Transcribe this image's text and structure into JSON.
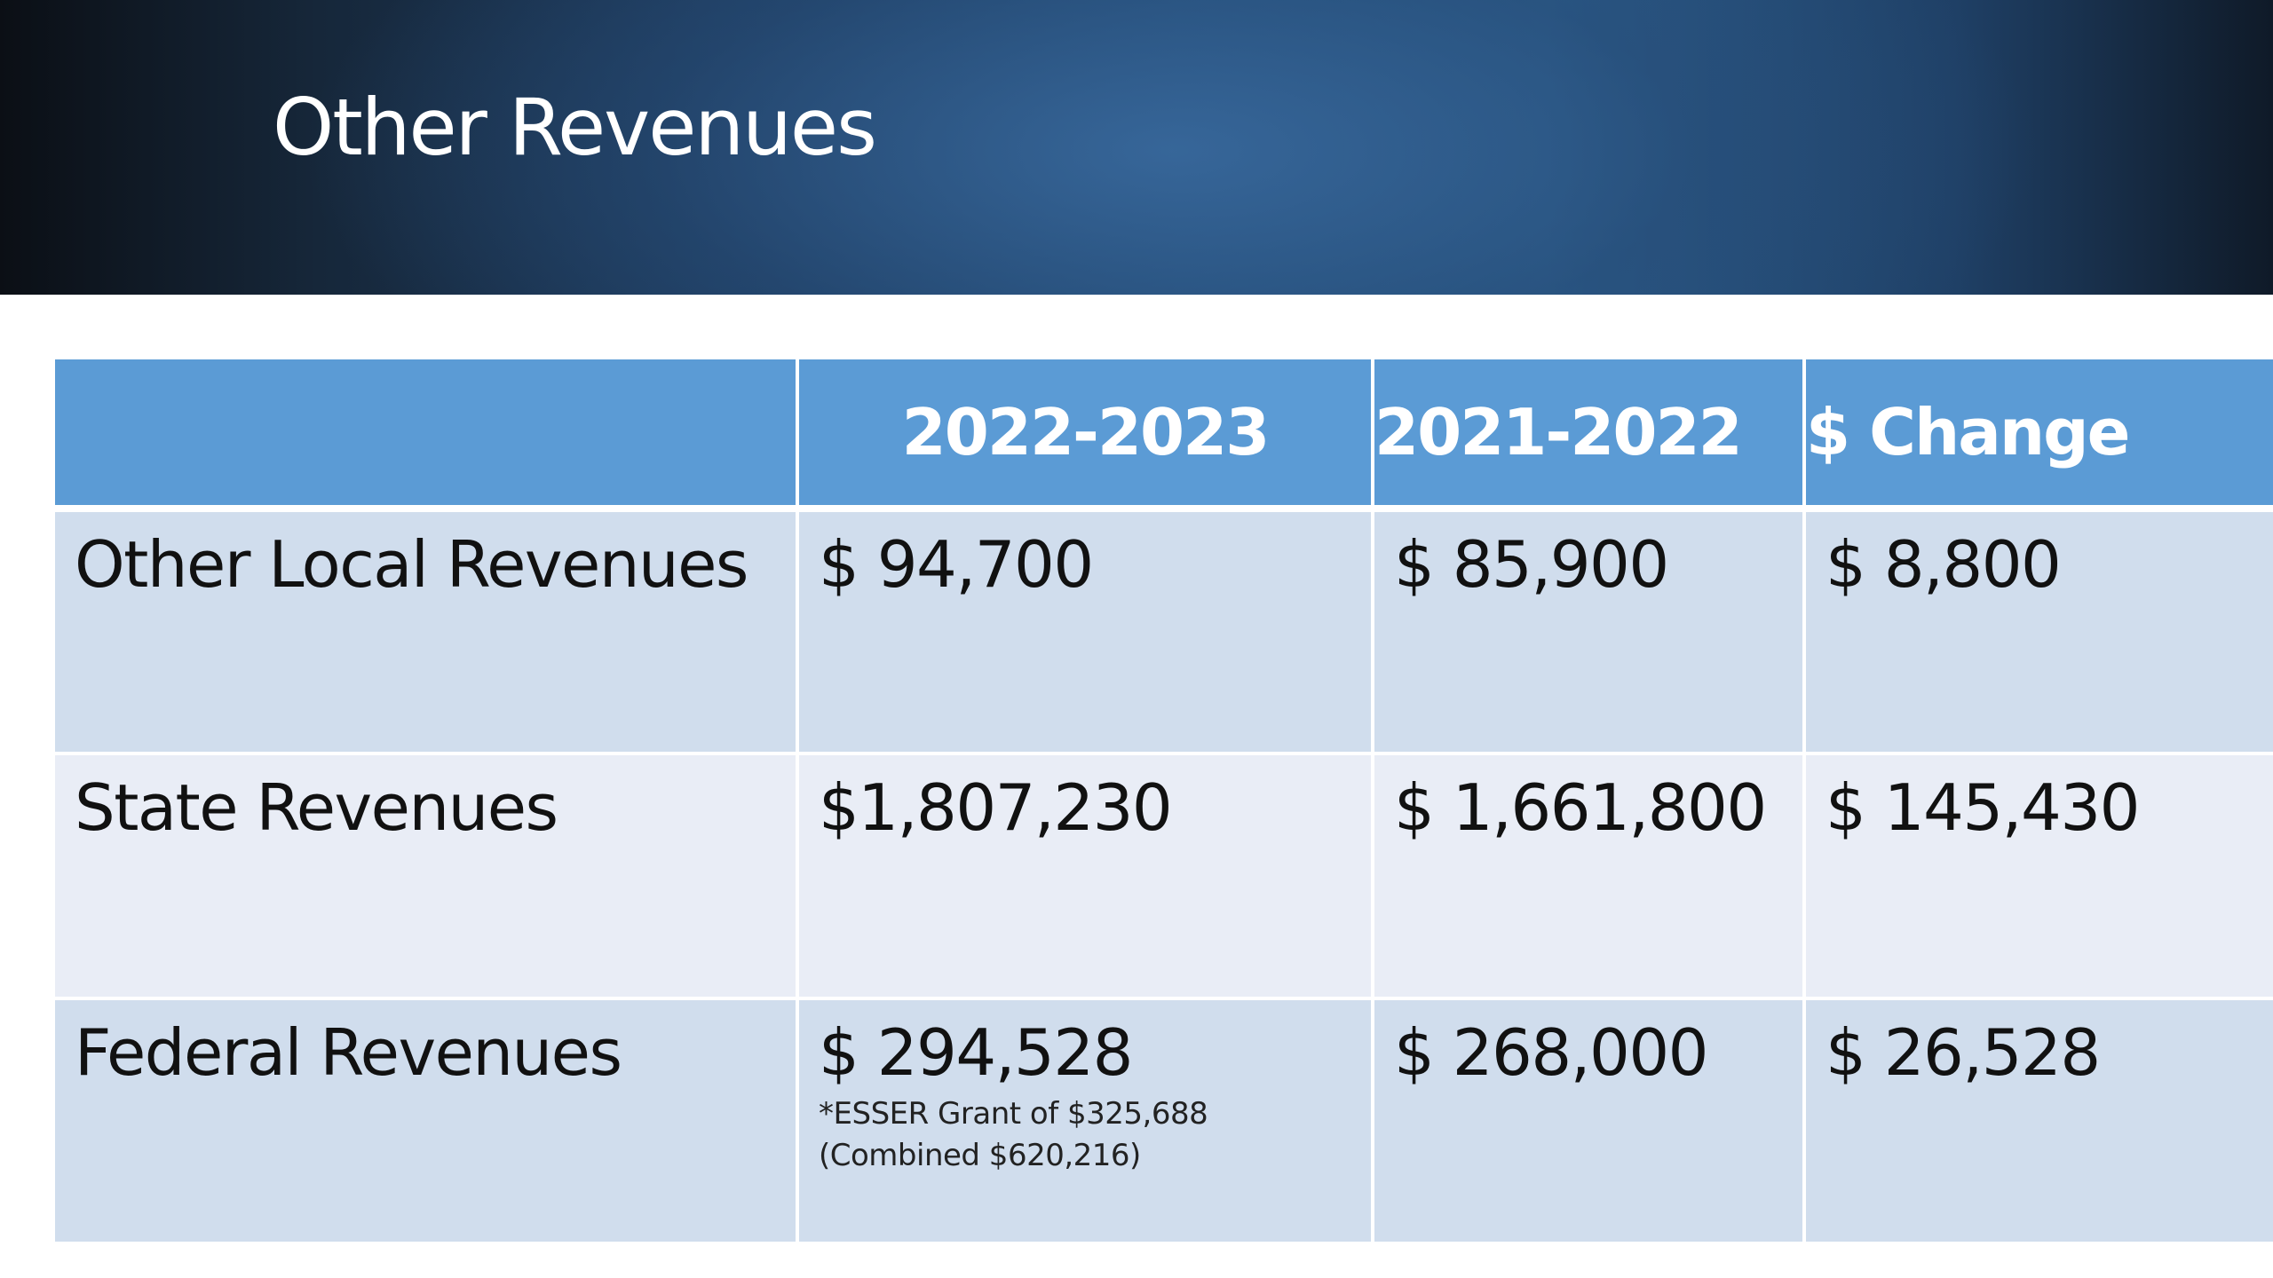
{
  "slide": {
    "title": "Other Revenues"
  },
  "table": {
    "headers": [
      "",
      "2022-2023",
      "2021-2022",
      "$ Change"
    ],
    "rows": [
      {
        "label": "Other Local Revenues",
        "y2022_2023": "$ 94,700",
        "y2021_2022": "$ 85,900",
        "change": "$ 8,800"
      },
      {
        "label": "State Revenues",
        "y2022_2023": "$1,807,230",
        "y2021_2022": "$ 1,661,800",
        "change": "$ 145,430"
      },
      {
        "label": "Federal Revenues",
        "y2022_2023": "$ 294,528",
        "note_line1": "*ESSER Grant of $325,688",
        "note_line2": "(Combined $620,216)",
        "y2021_2022": "$ 268,000",
        "change": "$ 26,528"
      }
    ]
  },
  "colors": {
    "header_fill": "#5b9bd5",
    "row_dark": "#d0dded",
    "row_light": "#e9edf6",
    "title_band": "#1d3a5c"
  }
}
